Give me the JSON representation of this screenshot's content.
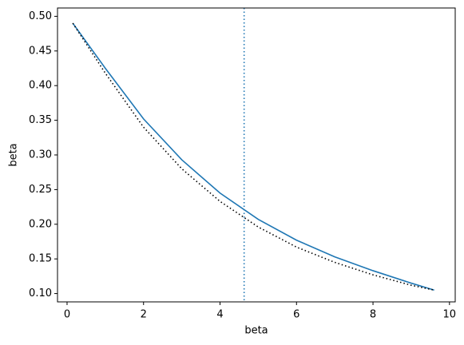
{
  "chart_data": {
    "type": "line",
    "xlabel": "beta",
    "ylabel": "beta",
    "x": [
      0.15,
      1,
      2,
      3,
      4,
      5,
      6,
      7,
      8,
      9,
      9.6
    ],
    "series": [
      {
        "color": "#1f77b4",
        "linestyle": "solid",
        "values": [
          0.49,
          0.425,
          0.352,
          0.293,
          0.245,
          0.207,
          0.177,
          0.153,
          0.133,
          0.115,
          0.105
        ]
      },
      {
        "color": "#000000",
        "linestyle": "dotted",
        "values": [
          0.49,
          0.418,
          0.34,
          0.28,
          0.233,
          0.196,
          0.167,
          0.145,
          0.127,
          0.112,
          0.105
        ]
      }
    ],
    "vlines": [
      {
        "x": 4.63,
        "color": "#1f77b4",
        "linestyle": "dotted"
      }
    ],
    "xlim": [
      -0.25,
      10.15
    ],
    "ylim": [
      0.088,
      0.512
    ],
    "xticks": [
      0,
      2,
      4,
      6,
      8,
      10
    ],
    "yticks": [
      {
        "value": 0.1,
        "label": "0.10"
      },
      0.15,
      {
        "value": 0.2,
        "label": "0.20"
      },
      0.25,
      {
        "value": 0.3,
        "label": "0.30"
      },
      0.35,
      {
        "value": 0.4,
        "label": "0.40"
      },
      0.45,
      {
        "value": 0.5,
        "label": "0.50"
      }
    ],
    "grid": false
  }
}
